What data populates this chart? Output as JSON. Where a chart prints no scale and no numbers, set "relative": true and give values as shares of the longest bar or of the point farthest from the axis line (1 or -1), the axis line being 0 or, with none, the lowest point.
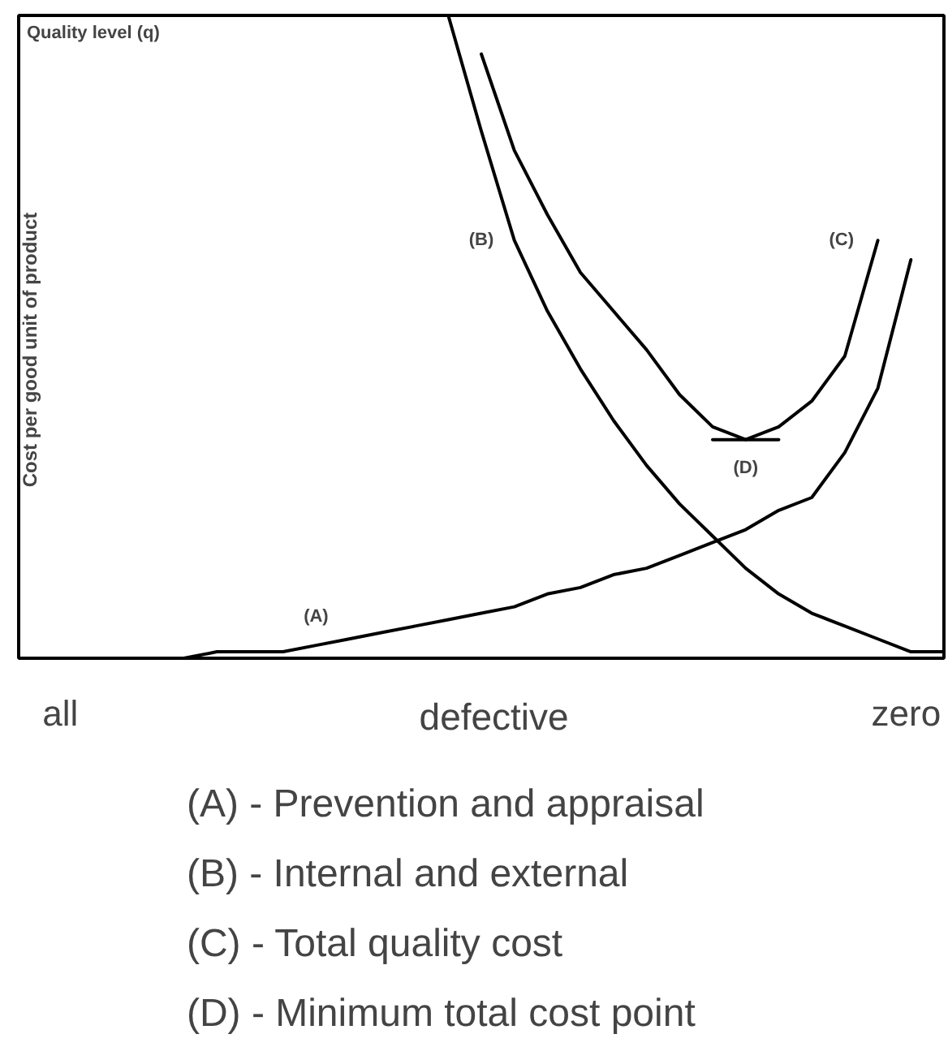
{
  "chart_data": {
    "type": "line",
    "relative": true,
    "tick_labels": false,
    "ylabel": "Cost per good unit of product",
    "xlabel": "defective",
    "categories": [
      null,
      null,
      null,
      null,
      null,
      null,
      null,
      null,
      null,
      null,
      null,
      null,
      null,
      null,
      null,
      null,
      null,
      null,
      null,
      null,
      null,
      null,
      null,
      null,
      null,
      null,
      null,
      null,
      null
    ],
    "series": [
      {
        "name": "(A)",
        "color": "#000000",
        "values": [
          null,
          null,
          null,
          null,
          0.0,
          0.0,
          0.01,
          0.01,
          0.01,
          0.02,
          0.03,
          0.04,
          0.05,
          0.06,
          0.07,
          0.08,
          0.1,
          0.11,
          0.13,
          0.14,
          0.16,
          0.18,
          0.2,
          0.23,
          0.25,
          0.32,
          0.42,
          0.62,
          null
        ]
      },
      {
        "name": "(B)",
        "color": "#000000",
        "values": [
          null,
          null,
          null,
          null,
          null,
          null,
          null,
          null,
          null,
          null,
          null,
          null,
          null,
          1.0,
          0.82,
          0.65,
          0.54,
          0.45,
          0.37,
          0.3,
          0.24,
          0.19,
          0.14,
          0.1,
          0.07,
          0.05,
          0.03,
          0.01,
          0.01
        ]
      },
      {
        "name": "(C)",
        "color": "#000000",
        "values": [
          null,
          null,
          null,
          null,
          null,
          null,
          null,
          null,
          null,
          null,
          null,
          null,
          null,
          null,
          0.94,
          0.79,
          0.69,
          0.6,
          0.54,
          0.48,
          0.41,
          0.36,
          0.34,
          0.36,
          0.4,
          0.47,
          0.65,
          null,
          null
        ]
      },
      {
        "name": "(D)",
        "color": "#000000",
        "values": [
          null,
          null,
          null,
          null,
          null,
          null,
          null,
          null,
          null,
          null,
          null,
          null,
          null,
          null,
          null,
          null,
          null,
          null,
          null,
          null,
          null,
          0.34,
          0.34,
          0.34,
          null,
          null,
          null,
          null,
          null
        ]
      }
    ],
    "annotations": [
      "Quality level (q)",
      "all",
      "zero",
      "(A) - Prevention and appraisal",
      "(B) - Internal and external",
      "(C) - Total quality cost",
      "(D) - Minimum total cost point"
    ]
  }
}
